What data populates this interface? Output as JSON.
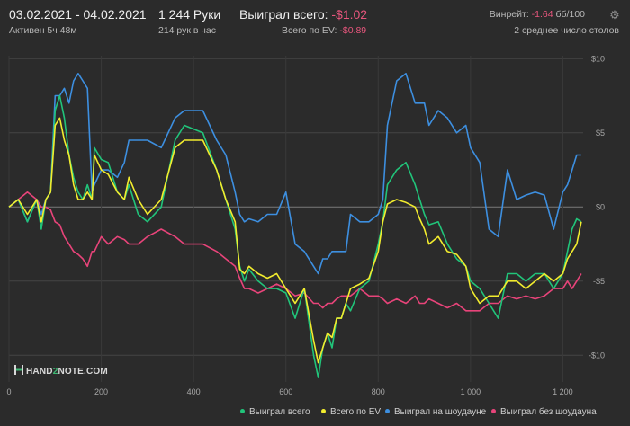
{
  "header": {
    "date_range": "03.02.2021 - 04.02.2021",
    "active": "Активен 5ч 48м",
    "hands": "1 244 Руки",
    "hands_per_hour": "214 рук в час",
    "won_total_label": "Выиграл всего:",
    "won_total_value": "-$1.02",
    "ev_label": "Всего по EV:",
    "ev_value": "-$0.89",
    "winrate_label": "Винрейт:",
    "winrate_value": "-1.64",
    "winrate_unit": "бб/100",
    "avg_tables": "2 среднее число столов"
  },
  "colors": {
    "won": "#21c47a",
    "ev": "#f2ec2e",
    "showdown": "#3d8fe0",
    "no_showdown": "#e8447a",
    "negative": "#e8567d",
    "background": "#2b2b2b"
  },
  "logo": {
    "prefix": "HAND",
    "two": "2",
    "suffix": "NOTE.COM"
  },
  "chart_data": {
    "type": "line",
    "x_ticks": [
      0,
      200,
      400,
      600,
      800,
      1000,
      1200
    ],
    "x_tick_labels": [
      "0",
      "200",
      "400",
      "600",
      "800",
      "1 000",
      "1 200"
    ],
    "y_ticks": [
      10,
      5,
      0,
      -5,
      -10
    ],
    "y_tick_labels": [
      "$10",
      "$5",
      "$0",
      "-$5",
      "-$10"
    ],
    "xlim": [
      0,
      1244
    ],
    "ylim": [
      -11.8,
      10.2
    ],
    "grid": true,
    "legend_position": "bottom-right",
    "series": [
      {
        "name": "Выиграл всего",
        "color": "#21c47a",
        "x": [
          0,
          20,
          40,
          60,
          70,
          80,
          90,
          100,
          110,
          120,
          130,
          140,
          150,
          160,
          170,
          180,
          185,
          200,
          215,
          235,
          250,
          260,
          280,
          300,
          330,
          360,
          380,
          420,
          450,
          470,
          490,
          500,
          510,
          520,
          540,
          560,
          580,
          600,
          620,
          640,
          660,
          670,
          680,
          690,
          700,
          710,
          720,
          730,
          740,
          760,
          780,
          800,
          810,
          820,
          840,
          860,
          880,
          890,
          900,
          910,
          930,
          950,
          970,
          990,
          1000,
          1020,
          1040,
          1060,
          1080,
          1100,
          1120,
          1140,
          1160,
          1180,
          1200,
          1210,
          1220,
          1230,
          1240
        ],
        "y": [
          0,
          0.5,
          -1,
          0.5,
          -1.5,
          0.5,
          1,
          6.5,
          7.5,
          6.0,
          3.5,
          2,
          1,
          0.5,
          1.5,
          0.5,
          4,
          3.2,
          3.0,
          1,
          0.5,
          1.5,
          -0.5,
          -1,
          0,
          4.5,
          5.5,
          5,
          2.5,
          0.5,
          -1.5,
          -4,
          -5,
          -4.2,
          -5,
          -5.5,
          -5.5,
          -5.8,
          -7.5,
          -5.5,
          -10,
          -11.5,
          -9.5,
          -8.5,
          -9.5,
          -7.5,
          -7.5,
          -6.5,
          -7,
          -5.5,
          -5,
          -2.5,
          -1,
          1.5,
          2.5,
          3.0,
          1.5,
          0.5,
          -0.5,
          -1.2,
          -1,
          -2.5,
          -3.5,
          -4,
          -5,
          -5.5,
          -6.5,
          -7.5,
          -4.5,
          -4.5,
          -5,
          -4.5,
          -4.5,
          -5.5,
          -4.5,
          -3,
          -1.5,
          -0.8,
          -1
        ]
      },
      {
        "name": "Всего по EV",
        "color": "#f2ec2e",
        "x": [
          0,
          20,
          40,
          60,
          70,
          80,
          90,
          100,
          110,
          120,
          130,
          140,
          150,
          160,
          170,
          180,
          185,
          200,
          215,
          235,
          250,
          260,
          280,
          300,
          330,
          360,
          380,
          420,
          450,
          470,
          490,
          500,
          510,
          520,
          540,
          560,
          580,
          600,
          620,
          640,
          660,
          670,
          680,
          690,
          700,
          710,
          720,
          730,
          740,
          760,
          780,
          800,
          810,
          820,
          840,
          860,
          880,
          890,
          900,
          910,
          930,
          950,
          970,
          990,
          1000,
          1020,
          1040,
          1060,
          1080,
          1100,
          1120,
          1140,
          1160,
          1180,
          1200,
          1210,
          1220,
          1230,
          1240
        ],
        "y": [
          0,
          0.5,
          -0.5,
          0.5,
          -1,
          0.5,
          1,
          5.5,
          6.0,
          4.5,
          3.5,
          1.5,
          0.5,
          0.5,
          1,
          0.5,
          3.5,
          2.5,
          2.2,
          1,
          0.5,
          2,
          0.5,
          -0.5,
          0.5,
          4,
          4.5,
          4.5,
          2.5,
          0.5,
          -1,
          -4.2,
          -4.5,
          -4,
          -4.5,
          -4.8,
          -4.5,
          -5.5,
          -6.5,
          -5.5,
          -9,
          -10.5,
          -9.5,
          -8.5,
          -8.8,
          -7.5,
          -7.5,
          -6.5,
          -5.5,
          -5.2,
          -4.8,
          -3,
          -1,
          0.2,
          0.5,
          0.3,
          0,
          -0.8,
          -1.5,
          -2.5,
          -2,
          -3,
          -3.2,
          -4,
          -5.5,
          -6.5,
          -6,
          -6,
          -5,
          -5,
          -5.5,
          -5,
          -4.5,
          -5,
          -4.5,
          -3.5,
          -3,
          -2.5,
          -1
        ]
      },
      {
        "name": "Выиграл на шоудауне",
        "color": "#3d8fe0",
        "x": [
          0,
          20,
          40,
          60,
          70,
          80,
          90,
          100,
          110,
          120,
          130,
          140,
          150,
          160,
          170,
          180,
          185,
          200,
          215,
          235,
          250,
          260,
          280,
          300,
          330,
          360,
          380,
          420,
          450,
          470,
          490,
          500,
          510,
          520,
          540,
          560,
          580,
          600,
          620,
          640,
          660,
          670,
          680,
          690,
          700,
          710,
          720,
          730,
          740,
          760,
          780,
          800,
          810,
          820,
          840,
          860,
          880,
          890,
          900,
          910,
          930,
          950,
          970,
          990,
          1000,
          1020,
          1040,
          1060,
          1080,
          1100,
          1120,
          1140,
          1160,
          1180,
          1200,
          1210,
          1220,
          1230,
          1240
        ],
        "y": [
          0,
          0.5,
          -1,
          0.5,
          -0.5,
          0.5,
          1,
          7.5,
          7.5,
          8,
          7,
          8.5,
          9,
          8.5,
          8,
          1,
          1.5,
          2.5,
          2.5,
          2,
          3,
          4.5,
          4.5,
          4.5,
          4,
          6,
          6.5,
          6.5,
          4.5,
          3.5,
          1,
          -0.5,
          -1,
          -0.8,
          -1,
          -0.5,
          -0.5,
          1,
          -2.5,
          -3,
          -4,
          -4.5,
          -3.5,
          -3.5,
          -3,
          -3,
          -3,
          -3,
          -0.5,
          -1,
          -1,
          -0.5,
          0.5,
          5.5,
          8.5,
          9,
          7,
          7,
          7,
          5.5,
          6.5,
          6,
          5,
          5.5,
          4,
          3,
          -1.5,
          -2,
          2.5,
          0.5,
          0.8,
          1,
          0.8,
          -1.5,
          1,
          1.5,
          2.5,
          3.5,
          3.5
        ]
      },
      {
        "name": "Выиграл без шоудауна",
        "color": "#e8447a",
        "x": [
          0,
          20,
          40,
          60,
          70,
          80,
          90,
          100,
          110,
          120,
          130,
          140,
          150,
          160,
          170,
          180,
          185,
          200,
          215,
          235,
          250,
          260,
          280,
          300,
          330,
          360,
          380,
          420,
          450,
          470,
          490,
          500,
          510,
          520,
          540,
          560,
          580,
          600,
          620,
          640,
          660,
          670,
          680,
          690,
          700,
          710,
          720,
          730,
          740,
          760,
          780,
          800,
          810,
          820,
          840,
          860,
          880,
          890,
          900,
          910,
          930,
          950,
          970,
          990,
          1000,
          1020,
          1040,
          1060,
          1080,
          1100,
          1120,
          1140,
          1160,
          1180,
          1200,
          1210,
          1220,
          1230,
          1240
        ],
        "y": [
          0,
          0.5,
          1,
          0.5,
          0,
          0,
          -0.2,
          -1,
          -1.2,
          -2,
          -2.5,
          -3,
          -3.2,
          -3.5,
          -4,
          -3,
          -3,
          -2,
          -2.5,
          -2,
          -2.2,
          -2.5,
          -2.5,
          -2,
          -1.5,
          -2,
          -2.5,
          -2.5,
          -3,
          -3.5,
          -4,
          -4.8,
          -5.5,
          -5.5,
          -5.8,
          -5.5,
          -5.2,
          -5.5,
          -6,
          -5.8,
          -6.5,
          -6.5,
          -6.8,
          -6.5,
          -6.5,
          -6.2,
          -6,
          -6,
          -6,
          -5.5,
          -6,
          -6,
          -6.2,
          -6.5,
          -6.2,
          -6.5,
          -6,
          -6.5,
          -6.5,
          -6.2,
          -6.5,
          -6.8,
          -6.5,
          -7,
          -7,
          -7,
          -6.5,
          -6.5,
          -6,
          -6.2,
          -6,
          -6.2,
          -6,
          -5.5,
          -5.5,
          -5,
          -5.5,
          -5,
          -4.5
        ]
      }
    ]
  }
}
